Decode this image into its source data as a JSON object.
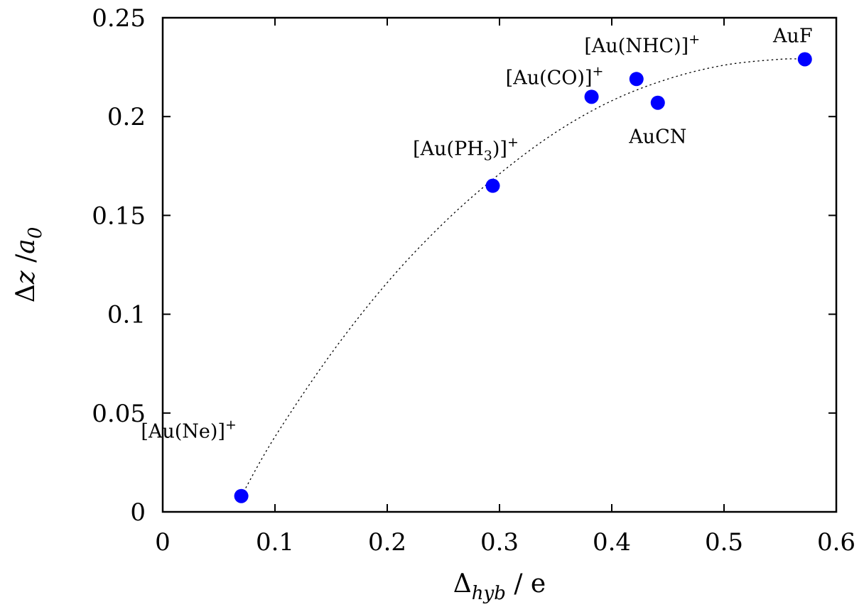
{
  "chart_data": {
    "type": "scatter",
    "title": "",
    "xlabel": {
      "base": "Δ",
      "sub": "hyb",
      "rest": " / e"
    },
    "ylabel": {
      "base": "Δ",
      "z": "z",
      "mid": " /",
      "a": "a",
      "sub": "0"
    },
    "xlim": [
      0,
      0.6
    ],
    "ylim": [
      0,
      0.25
    ],
    "xticks": [
      {
        "value": 0,
        "label": "0"
      },
      {
        "value": 0.1,
        "label": "0.1"
      },
      {
        "value": 0.2,
        "label": "0.2"
      },
      {
        "value": 0.3,
        "label": "0.3"
      },
      {
        "value": 0.4,
        "label": "0.4"
      },
      {
        "value": 0.5,
        "label": "0.5"
      },
      {
        "value": 0.6,
        "label": "0.6"
      }
    ],
    "yticks": [
      {
        "value": 0,
        "label": "0"
      },
      {
        "value": 0.05,
        "label": "0.05"
      },
      {
        "value": 0.1,
        "label": "0.1"
      },
      {
        "value": 0.15,
        "label": "0.15"
      },
      {
        "value": 0.2,
        "label": "0.2"
      },
      {
        "value": 0.25,
        "label": "0.25"
      }
    ],
    "grid": false,
    "marker_color": "#0000ff",
    "points": [
      {
        "label": {
          "base": "[Au(Ne)]",
          "sup": "+"
        },
        "x": 0.07,
        "y": 0.008
      },
      {
        "label": {
          "base": "[Au(PH",
          "sub": "3",
          "rest": ")]",
          "sup": "+"
        },
        "x": 0.294,
        "y": 0.165
      },
      {
        "label": {
          "base": "[Au(CO)]",
          "sup": "+"
        },
        "x": 0.382,
        "y": 0.21
      },
      {
        "label": {
          "base": "[Au(NHC)]",
          "sup": "+"
        },
        "x": 0.422,
        "y": 0.219
      },
      {
        "label": {
          "base": "AuCN"
        },
        "x": 0.441,
        "y": 0.207
      },
      {
        "label": {
          "base": "AuF"
        },
        "x": 0.572,
        "y": 0.229
      }
    ],
    "fit_curve": {
      "style": "dotted",
      "x_range": [
        0.07,
        0.572
      ],
      "points": [
        {
          "x": 0.07,
          "y": 0.008
        },
        {
          "x": 0.1,
          "y": 0.038
        },
        {
          "x": 0.15,
          "y": 0.08
        },
        {
          "x": 0.2,
          "y": 0.116
        },
        {
          "x": 0.25,
          "y": 0.146
        },
        {
          "x": 0.3,
          "y": 0.171
        },
        {
          "x": 0.35,
          "y": 0.192
        },
        {
          "x": 0.4,
          "y": 0.208
        },
        {
          "x": 0.45,
          "y": 0.219
        },
        {
          "x": 0.5,
          "y": 0.226
        },
        {
          "x": 0.55,
          "y": 0.229
        },
        {
          "x": 0.572,
          "y": 0.229
        }
      ]
    }
  }
}
